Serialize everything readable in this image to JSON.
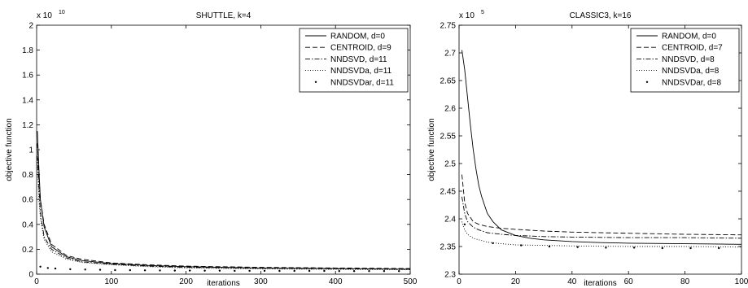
{
  "chart_data": [
    {
      "type": "line",
      "title": "SHUTTLE, k=4",
      "xlabel": "iterations",
      "ylabel": "objective function",
      "xlim": [
        0,
        500
      ],
      "ylim": [
        0,
        2.0
      ],
      "y_multiplier_label": "x 10",
      "y_multiplier_exp": "10",
      "x_ticks": [
        0,
        100,
        200,
        300,
        400,
        500
      ],
      "y_ticks": [
        0,
        0.2,
        0.4,
        0.6,
        0.8,
        1,
        1.2,
        1.4,
        1.6,
        1.8,
        2
      ],
      "y_tick_labels": [
        "0",
        "0.2",
        "0.4",
        "0.6",
        "0.8",
        "1",
        "1.2",
        "1.4",
        "1.6",
        "1.8",
        "2"
      ],
      "legend_position": "top-right",
      "series": [
        {
          "name": "RANDOM, d=0",
          "style": "solid",
          "x": [
            1,
            3,
            5,
            10,
            20,
            40,
            60,
            100,
            150,
            200,
            300,
            400,
            500
          ],
          "y": [
            1.15,
            0.85,
            0.6,
            0.38,
            0.22,
            0.14,
            0.11,
            0.085,
            0.07,
            0.06,
            0.05,
            0.045,
            0.04
          ]
        },
        {
          "name": "CENTROID, d=9",
          "style": "dashed",
          "x": [
            1,
            3,
            5,
            10,
            20,
            40,
            60,
            100,
            150,
            200,
            300,
            400,
            500
          ],
          "y": [
            1.05,
            0.8,
            0.6,
            0.4,
            0.24,
            0.15,
            0.12,
            0.09,
            0.075,
            0.065,
            0.055,
            0.05,
            0.045
          ]
        },
        {
          "name": "NNDSVD, d=11",
          "style": "dashdot",
          "x": [
            1,
            3,
            5,
            10,
            20,
            40,
            60,
            100,
            150,
            200,
            300,
            400,
            500
          ],
          "y": [
            0.95,
            0.7,
            0.5,
            0.3,
            0.2,
            0.13,
            0.1,
            0.08,
            0.065,
            0.055,
            0.048,
            0.043,
            0.04
          ]
        },
        {
          "name": "NNDSVDa, d=11",
          "style": "dotted",
          "x": [
            1,
            3,
            5,
            10,
            20,
            40,
            60,
            100,
            150,
            200,
            300,
            400,
            500
          ],
          "y": [
            0.9,
            0.6,
            0.45,
            0.28,
            0.18,
            0.12,
            0.095,
            0.075,
            0.06,
            0.05,
            0.042,
            0.038,
            0.035
          ]
        },
        {
          "name": "NNDSVDar, d=11",
          "style": "points",
          "x": [
            5,
            15,
            25,
            45,
            65,
            85,
            105,
            125,
            145,
            165,
            185,
            205,
            225,
            245,
            265,
            285,
            305,
            325,
            345,
            365,
            385,
            405,
            425,
            445,
            465,
            485
          ],
          "y": [
            0.06,
            0.05,
            0.045,
            0.04,
            0.037,
            0.035,
            0.033,
            0.032,
            0.031,
            0.03,
            0.029,
            0.029,
            0.028,
            0.028,
            0.027,
            0.027,
            0.027,
            0.026,
            0.026,
            0.026,
            0.026,
            0.025,
            0.025,
            0.025,
            0.025,
            0.025
          ]
        }
      ]
    },
    {
      "type": "line",
      "title": "CLASSIC3, k=16",
      "xlabel": "iterations",
      "ylabel": "objective function",
      "xlim": [
        0,
        100
      ],
      "ylim": [
        2.3,
        2.75
      ],
      "y_multiplier_label": "x 10",
      "y_multiplier_exp": "5",
      "x_ticks": [
        0,
        20,
        40,
        60,
        80,
        100
      ],
      "y_ticks": [
        2.3,
        2.35,
        2.4,
        2.45,
        2.5,
        2.55,
        2.6,
        2.65,
        2.7,
        2.75
      ],
      "y_tick_labels": [
        "2.3",
        "2.35",
        "2.4",
        "2.45",
        "2.5",
        "2.55",
        "2.6",
        "2.65",
        "2.7",
        "2.75"
      ],
      "legend_position": "top-right",
      "series": [
        {
          "name": "RANDOM, d=0",
          "style": "solid",
          "x": [
            1,
            2,
            3,
            4,
            5,
            6,
            7,
            8,
            10,
            12,
            15,
            20,
            25,
            30,
            40,
            50,
            60,
            80,
            100
          ],
          "y": [
            2.705,
            2.67,
            2.62,
            2.57,
            2.525,
            2.49,
            2.46,
            2.44,
            2.41,
            2.395,
            2.38,
            2.37,
            2.365,
            2.362,
            2.359,
            2.357,
            2.356,
            2.355,
            2.354
          ]
        },
        {
          "name": "CENTROID, d=7",
          "style": "dashed",
          "x": [
            1,
            2,
            3,
            5,
            7,
            10,
            15,
            20,
            30,
            40,
            60,
            80,
            100
          ],
          "y": [
            2.48,
            2.43,
            2.41,
            2.395,
            2.39,
            2.386,
            2.383,
            2.381,
            2.378,
            2.376,
            2.374,
            2.372,
            2.371
          ]
        },
        {
          "name": "NNDSVD, d=8",
          "style": "dashdot",
          "x": [
            1,
            2,
            3,
            5,
            7,
            10,
            15,
            20,
            30,
            40,
            60,
            80,
            100
          ],
          "y": [
            2.44,
            2.41,
            2.395,
            2.385,
            2.38,
            2.375,
            2.372,
            2.37,
            2.368,
            2.367,
            2.366,
            2.366,
            2.365
          ]
        },
        {
          "name": "NNDSVDa, d=8",
          "style": "dotted",
          "x": [
            1,
            2,
            3,
            5,
            7,
            10,
            15,
            20,
            30,
            40,
            60,
            80,
            100
          ],
          "y": [
            2.395,
            2.38,
            2.372,
            2.365,
            2.362,
            2.358,
            2.355,
            2.353,
            2.352,
            2.351,
            2.35,
            2.35,
            2.349
          ]
        },
        {
          "name": "NNDSVDar, d=8",
          "style": "points",
          "x": [
            2,
            12,
            22,
            32,
            42,
            52,
            62,
            72,
            82,
            92
          ],
          "y": [
            2.39,
            2.356,
            2.352,
            2.35,
            2.349,
            2.348,
            2.348,
            2.347,
            2.347,
            2.347
          ]
        }
      ]
    }
  ]
}
